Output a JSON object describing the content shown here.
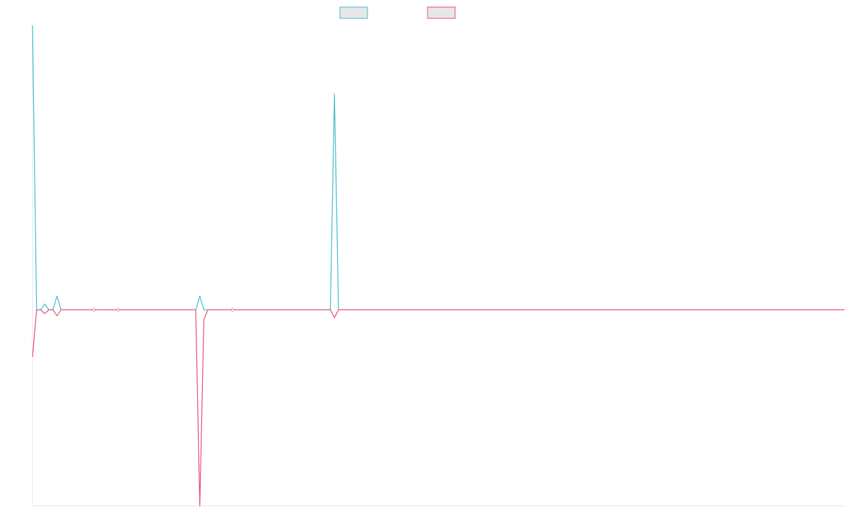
{
  "chart_data": {
    "type": "line",
    "title": "",
    "xlabel": "",
    "ylabel": "",
    "x_count": 200,
    "ylim": [
      -1.0,
      1.45
    ],
    "grid": false,
    "legend": "top-center",
    "series": [
      {
        "color": "#4bbfc9",
        "fill": "#e6e6e6",
        "points": [
          [
            0,
            1.45
          ],
          [
            1,
            0.0
          ],
          [
            2,
            0.0
          ],
          [
            3,
            0.03
          ],
          [
            4,
            0.0
          ],
          [
            5,
            0.0
          ],
          [
            6,
            0.07
          ],
          [
            7,
            0.0
          ],
          [
            8,
            0.0
          ],
          [
            15,
            0.0
          ],
          [
            21,
            0.0
          ],
          [
            40,
            0.0
          ],
          [
            41,
            0.07
          ],
          [
            42,
            0.0
          ],
          [
            49,
            0.0
          ],
          [
            73,
            0.0
          ],
          [
            74,
            1.1
          ],
          [
            75,
            0.0
          ],
          [
            199,
            0.0
          ]
        ]
      },
      {
        "color": "#e8537a",
        "fill": "#e6e6e6",
        "points": [
          [
            0,
            -0.24
          ],
          [
            1,
            0.0
          ],
          [
            2,
            0.0
          ],
          [
            3,
            -0.02
          ],
          [
            4,
            0.0
          ],
          [
            5,
            0.0
          ],
          [
            6,
            -0.03
          ],
          [
            7,
            0.0
          ],
          [
            40,
            0.0
          ],
          [
            41,
            -1.0
          ],
          [
            42,
            -0.05
          ],
          [
            43,
            0.0
          ],
          [
            73,
            0.0
          ],
          [
            74,
            -0.04
          ],
          [
            75,
            0.0
          ],
          [
            199,
            0.0
          ]
        ]
      }
    ],
    "markers": [
      {
        "x": 15,
        "y": 0.0
      },
      {
        "x": 21,
        "y": 0.0
      },
      {
        "x": 49,
        "y": 0.0
      }
    ]
  }
}
